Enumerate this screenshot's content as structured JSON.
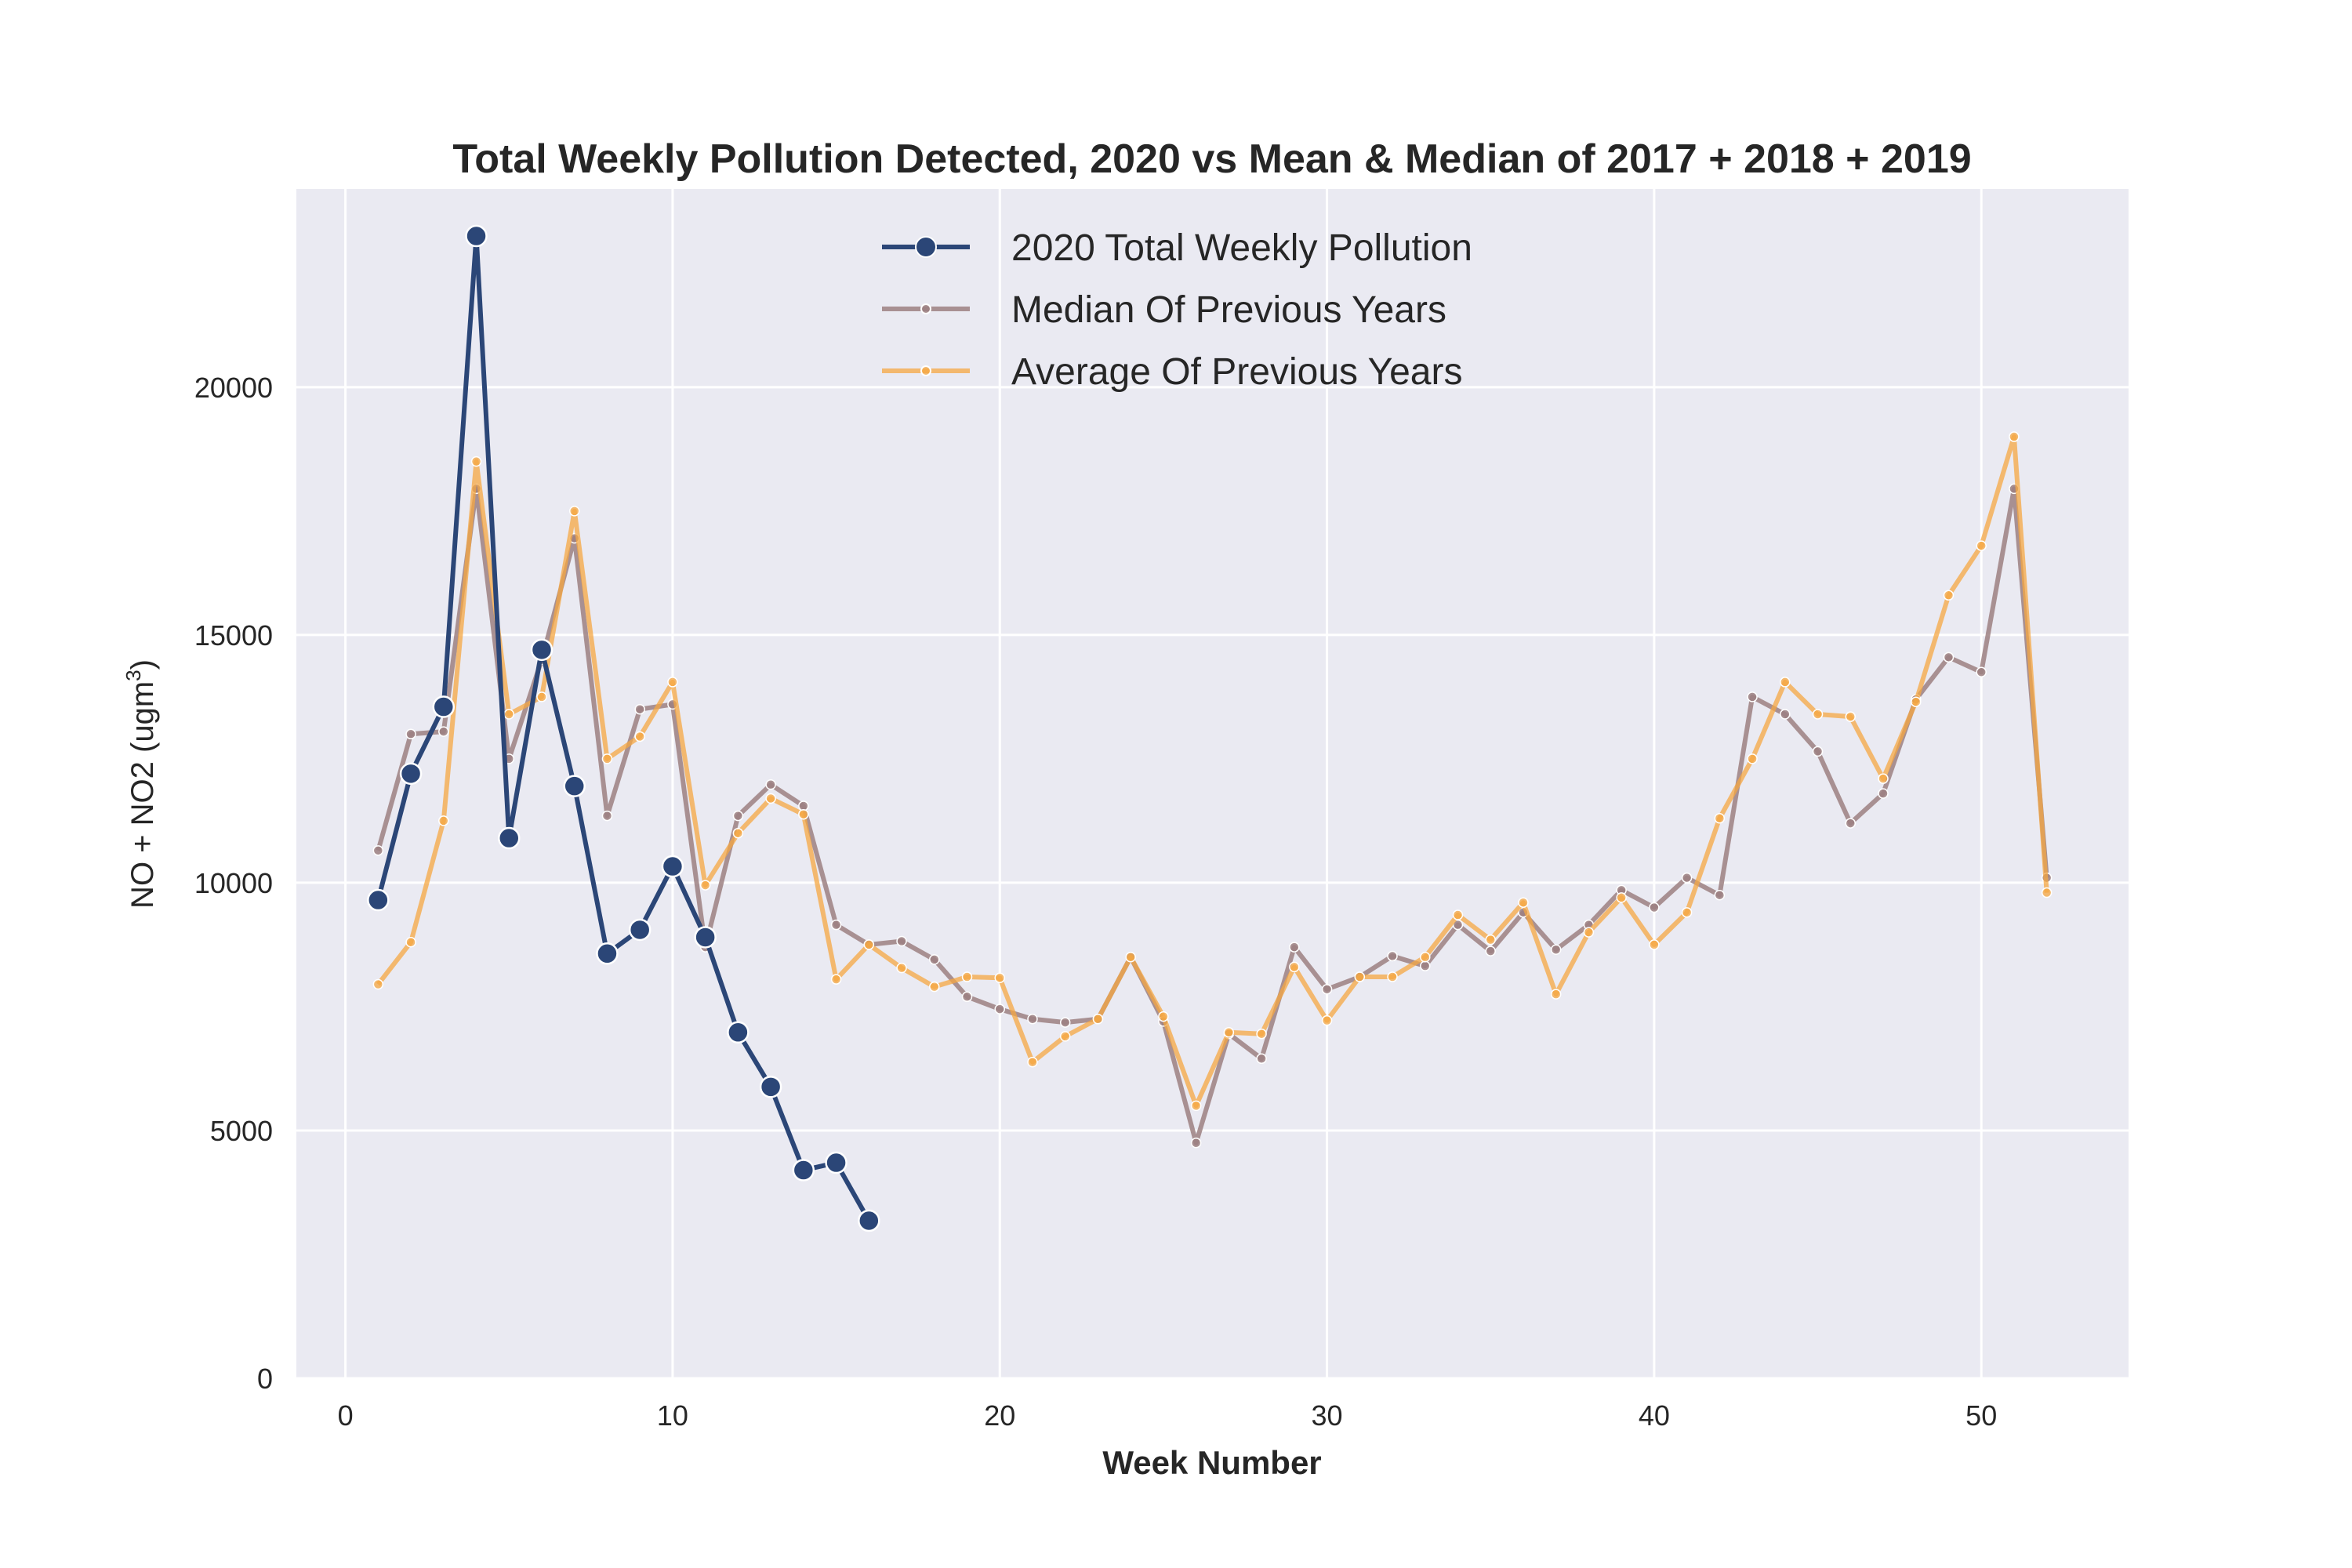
{
  "chart_data": {
    "type": "line",
    "title": "Total Weekly Pollution Detected, 2020 vs Mean & Median of 2017 + 2018 + 2019",
    "xlabel": "Week Number",
    "ylabel": "NO + NO2 (ugm",
    "ylabel_sup": "3",
    "ylabel_end": ")",
    "xlim": [
      -1.5,
      54.5
    ],
    "ylim": [
      0,
      24000
    ],
    "xticks": [
      0,
      10,
      20,
      30,
      40,
      50
    ],
    "yticks": [
      0,
      5000,
      10000,
      15000,
      20000
    ],
    "grid": true,
    "legend_position": "top-center",
    "series": [
      {
        "name": "2020 Total Weekly Pollution",
        "color": "#2b4677",
        "x": [
          1,
          2,
          3,
          4,
          5,
          6,
          7,
          8,
          9,
          10,
          11,
          12,
          13,
          14,
          15,
          16
        ],
        "values": [
          9650,
          12200,
          13550,
          23050,
          10900,
          14700,
          11950,
          8570,
          9050,
          10330,
          8900,
          6980,
          5880,
          4200,
          4350,
          3180
        ]
      },
      {
        "name": "Median Of Previous Years",
        "color": "#9c8081",
        "x": [
          1,
          2,
          3,
          4,
          5,
          6,
          7,
          8,
          9,
          10,
          11,
          12,
          13,
          14,
          15,
          16,
          17,
          18,
          19,
          20,
          21,
          22,
          23,
          24,
          25,
          26,
          27,
          28,
          29,
          30,
          31,
          32,
          33,
          34,
          35,
          36,
          37,
          38,
          39,
          40,
          41,
          42,
          43,
          44,
          45,
          46,
          47,
          48,
          49,
          50,
          51,
          52
        ],
        "values": [
          10650,
          13000,
          13050,
          17950,
          12500,
          14500,
          16950,
          11350,
          13500,
          13600,
          8700,
          11350,
          11980,
          11550,
          9150,
          8750,
          8820,
          8450,
          7700,
          7450,
          7250,
          7180,
          7250,
          8500,
          7200,
          4750,
          6950,
          6450,
          8700,
          7850,
          8100,
          8520,
          8320,
          9150,
          8620,
          9400,
          8650,
          9150,
          9850,
          9500,
          10100,
          9750,
          13750,
          13400,
          12650,
          11200,
          11800,
          13700,
          14550,
          14250,
          17950,
          10100
        ]
      },
      {
        "name": "Average Of Previous Years",
        "color": "#f5a742",
        "x": [
          1,
          2,
          3,
          4,
          5,
          6,
          7,
          8,
          9,
          10,
          11,
          12,
          13,
          14,
          15,
          16,
          17,
          18,
          19,
          20,
          21,
          22,
          23,
          24,
          25,
          26,
          27,
          28,
          29,
          30,
          31,
          32,
          33,
          34,
          35,
          36,
          37,
          38,
          39,
          40,
          41,
          42,
          43,
          44,
          45,
          46,
          47,
          48,
          49,
          50,
          51,
          52
        ],
        "values": [
          7950,
          8800,
          11250,
          18500,
          13400,
          13750,
          17500,
          12500,
          12950,
          14050,
          9950,
          11000,
          11700,
          11380,
          8050,
          8750,
          8280,
          7900,
          8100,
          8080,
          6380,
          6900,
          7250,
          8500,
          7300,
          5500,
          6980,
          6950,
          8300,
          7220,
          8100,
          8100,
          8500,
          9350,
          8850,
          9600,
          7750,
          9000,
          9700,
          8750,
          9400,
          11300,
          12500,
          14050,
          13400,
          13350,
          12100,
          13650,
          15800,
          16800,
          19000,
          9800
        ]
      }
    ]
  }
}
